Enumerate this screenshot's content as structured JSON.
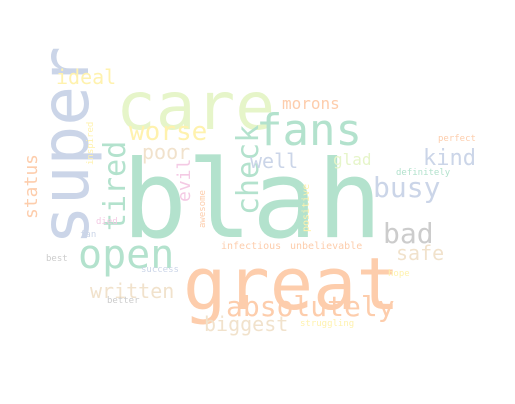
{
  "words": [
    {
      "text": "blah",
      "color": "#b3e2cd",
      "weight": 1.0
    },
    {
      "text": "great",
      "color": "#fdcdac",
      "weight": 0.72
    },
    {
      "text": "care",
      "color": "#e6f5c9",
      "weight": 0.66
    },
    {
      "text": "super",
      "color": "#cbd5e8",
      "weight": 0.64
    },
    {
      "text": "fans",
      "color": "#b3e2cd",
      "weight": 0.44
    },
    {
      "text": "open",
      "color": "#b3e2cd",
      "weight": 0.42
    },
    {
      "text": "absolutely",
      "color": "#fdcdac",
      "weight": 0.32
    },
    {
      "text": "tired",
      "color": "#b3e2cd",
      "weight": 0.32
    },
    {
      "text": "check",
      "color": "#b3e2cd",
      "weight": 0.3
    },
    {
      "text": "worse",
      "color": "#fff2ae",
      "weight": 0.28
    },
    {
      "text": "busy",
      "color": "#cbd5e8",
      "weight": 0.28
    },
    {
      "text": "bad",
      "color": "#cccccc",
      "weight": 0.28
    },
    {
      "text": "kind",
      "color": "#cbd5e8",
      "weight": 0.22
    },
    {
      "text": "safe",
      "color": "#f1e2cc",
      "weight": 0.2
    },
    {
      "text": "ideal",
      "color": "#fff2ae",
      "weight": 0.2
    },
    {
      "text": "well",
      "color": "#cbd5e8",
      "weight": 0.2
    },
    {
      "text": "poor",
      "color": "#f1e2cc",
      "weight": 0.2
    },
    {
      "text": "written",
      "color": "#f1e2cc",
      "weight": 0.2
    },
    {
      "text": "biggest",
      "color": "#f1e2cc",
      "weight": 0.2
    },
    {
      "text": "status",
      "color": "#fdcdac",
      "weight": 0.18
    },
    {
      "text": "evil",
      "color": "#f4cae4",
      "weight": 0.18
    },
    {
      "text": "morons",
      "color": "#fdcdac",
      "weight": 0.16
    },
    {
      "text": "glad",
      "color": "#e6f5c9",
      "weight": 0.16
    },
    {
      "text": "positive",
      "color": "#fff2ae",
      "weight": 0.1
    },
    {
      "text": "inspired",
      "color": "#fff2ae",
      "weight": 0.09
    },
    {
      "text": "awesome",
      "color": "#fdcdac",
      "weight": 0.08
    },
    {
      "text": "infectious",
      "color": "#fdcdac",
      "weight": 0.09
    },
    {
      "text": "unbelievable",
      "color": "#fdcdac",
      "weight": 0.09
    },
    {
      "text": "definitely",
      "color": "#b3e2cd",
      "weight": 0.08
    },
    {
      "text": "perfect",
      "color": "#fdcdac",
      "weight": 0.08
    },
    {
      "text": "died",
      "color": "#f4cae4",
      "weight": 0.08
    },
    {
      "text": "fan",
      "color": "#cbd5e8",
      "weight": 0.08
    },
    {
      "text": "best",
      "color": "#cccccc",
      "weight": 0.08
    },
    {
      "text": "success",
      "color": "#cbd5e8",
      "weight": 0.08
    },
    {
      "text": "hope",
      "color": "#fff2ae",
      "weight": 0.08
    },
    {
      "text": "better",
      "color": "#cccccc",
      "weight": 0.08
    },
    {
      "text": "struggling",
      "color": "#fff2ae",
      "weight": 0.08
    }
  ]
}
